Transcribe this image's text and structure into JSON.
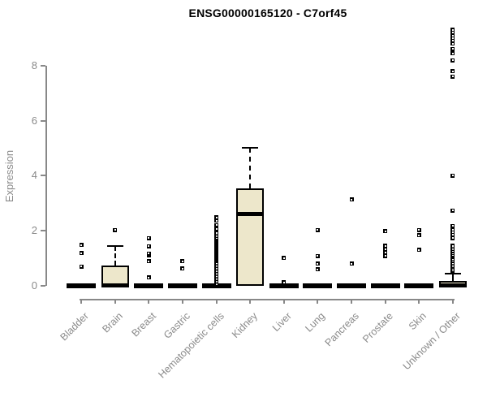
{
  "chart_data": {
    "type": "boxplot",
    "title": "ENSG00000165120 - C7orf45",
    "ylabel": "Expression",
    "xlabel": "",
    "yticks": [
      0,
      2,
      4,
      6,
      8
    ],
    "ylim": [
      -0.3,
      9.5
    ],
    "grid": false,
    "legend": "none",
    "box_fill_color": "#EDE7CB",
    "box_border_color": "#000000",
    "axis_color": "#888888",
    "tick_label_color": "#8a8a8a",
    "categories": [
      "Bladder",
      "Brain",
      "Breast",
      "Gastric",
      "Hematopoietic cells",
      "Kidney",
      "Liver",
      "Lung",
      "Pancreas",
      "Prostate",
      "Skin",
      "Unknown / Other"
    ],
    "boxes": [
      {
        "category": "Bladder",
        "q1": 0,
        "median": 0,
        "q3": 0,
        "whisker_low": 0,
        "whisker_high": 0,
        "outliers": [
          0.7,
          1.19,
          1.48
        ]
      },
      {
        "category": "Brain",
        "q1": 0,
        "median": 0.02,
        "q3": 0.75,
        "whisker_low": 0,
        "whisker_high": 1.45,
        "outliers": [
          2.03
        ]
      },
      {
        "category": "Breast",
        "q1": 0,
        "median": 0,
        "q3": 0,
        "whisker_low": 0,
        "whisker_high": 0,
        "outliers": [
          0.3,
          0.89,
          1.12,
          1.17,
          1.44,
          1.73
        ]
      },
      {
        "category": "Gastric",
        "q1": 0,
        "median": 0,
        "q3": 0,
        "whisker_low": 0,
        "whisker_high": 0,
        "outliers": [
          0.63,
          0.89
        ]
      },
      {
        "category": "Hematopoietic cells",
        "q1": 0,
        "median": 0,
        "q3": 0,
        "whisker_low": 0,
        "whisker_high": 0,
        "outliers": [
          0.06,
          0.12,
          0.18,
          0.24,
          0.3,
          0.36,
          0.42,
          0.48,
          0.54,
          0.6,
          0.66,
          0.72,
          0.78,
          0.84,
          0.9,
          0.96,
          1.02,
          1.08,
          1.14,
          1.2,
          1.26,
          1.32,
          1.38,
          1.44,
          1.5,
          1.56,
          1.62,
          1.68,
          1.74,
          1.8,
          1.86,
          1.92,
          2.06,
          2.21,
          2.36,
          2.48
        ]
      },
      {
        "category": "Kidney",
        "q1": 0,
        "median": 2.62,
        "q3": 3.54,
        "whisker_low": 0,
        "whisker_high": 5.02,
        "outliers": []
      },
      {
        "category": "Liver",
        "q1": 0,
        "median": 0,
        "q3": 0,
        "whisker_low": 0,
        "whisker_high": 0,
        "outliers": [
          0.12,
          1.01
        ]
      },
      {
        "category": "Lung",
        "q1": 0,
        "median": 0,
        "q3": 0,
        "whisker_low": 0,
        "whisker_high": 0,
        "outliers": [
          0.59,
          0.8,
          1.09,
          2.03
        ]
      },
      {
        "category": "Pancreas",
        "q1": 0,
        "median": 0,
        "q3": 0,
        "whisker_low": 0,
        "whisker_high": 0,
        "outliers": [
          0.8,
          3.13
        ]
      },
      {
        "category": "Prostate",
        "q1": 0,
        "median": 0,
        "q3": 0,
        "whisker_low": 0,
        "whisker_high": 0,
        "outliers": [
          1.09,
          1.21,
          1.33,
          1.45,
          1.98
        ]
      },
      {
        "category": "Skin",
        "q1": 0,
        "median": 0,
        "q3": 0,
        "whisker_low": 0,
        "whisker_high": 0,
        "outliers": [
          1.3,
          1.83,
          2.03
        ]
      },
      {
        "category": "Unknown / Other",
        "q1": 0,
        "median": 0.02,
        "q3": 0.18,
        "whisker_low": 0,
        "whisker_high": 0.45,
        "outliers": [
          0.56,
          0.63,
          0.7,
          0.77,
          0.84,
          0.91,
          0.98,
          1.05,
          1.12,
          1.19,
          1.26,
          1.33,
          1.4,
          1.45,
          1.74,
          1.85,
          1.95,
          2.05,
          2.18,
          2.74,
          4.01,
          7.6,
          7.8,
          8.2,
          8.45,
          8.6,
          8.8,
          8.9,
          9.0,
          9.1,
          9.2,
          9.3
        ]
      }
    ]
  }
}
